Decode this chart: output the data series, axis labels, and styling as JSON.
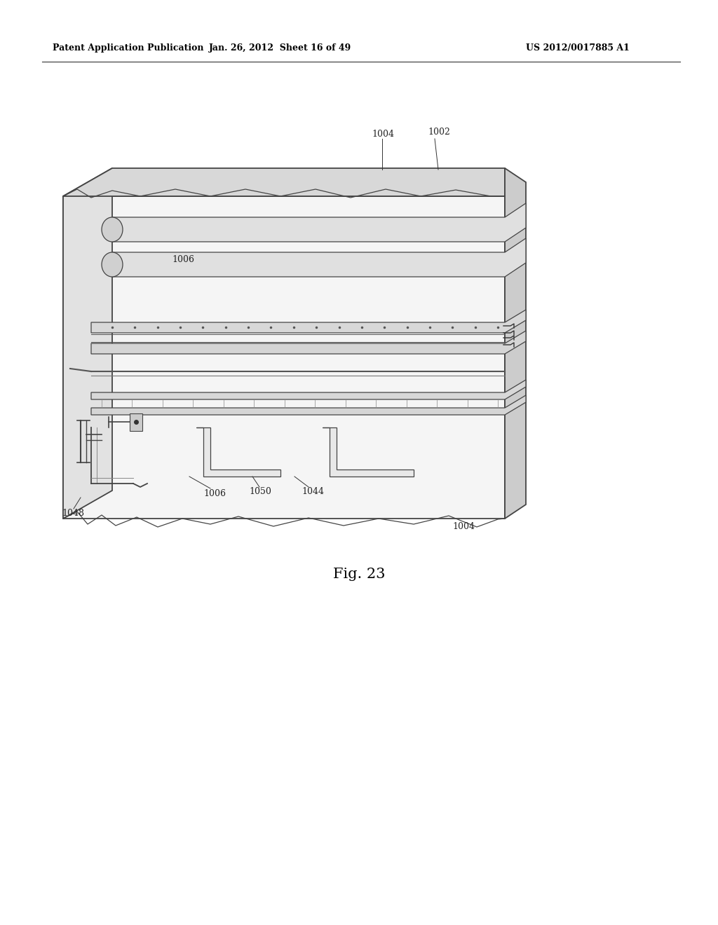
{
  "background_color": "#ffffff",
  "header_left": "Patent Application Publication",
  "header_center": "Jan. 26, 2012  Sheet 16 of 49",
  "header_right": "US 2012/0017885 A1",
  "figure_label": "Fig. 23",
  "line_color": "#444444",
  "light_gray": "#cccccc",
  "mid_gray": "#999999"
}
